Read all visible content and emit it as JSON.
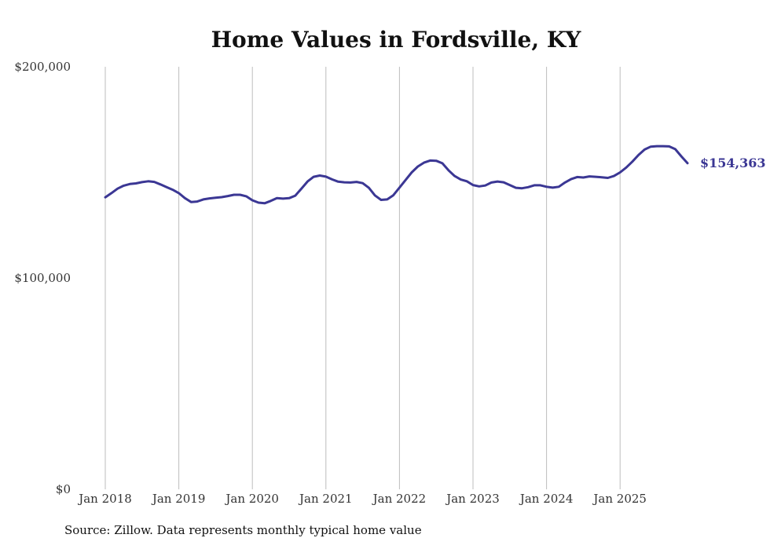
{
  "chart_data": {
    "type": "line",
    "title": "Home Values in Fordsville, KY",
    "xlabel": "",
    "ylabel": "",
    "ylim": [
      0,
      200000
    ],
    "y_ticks": [
      {
        "value": 0,
        "label": "$0"
      },
      {
        "value": 100000,
        "label": "$100,000"
      },
      {
        "value": 200000,
        "label": "$200,000"
      }
    ],
    "x_ticks": [
      {
        "index": 0,
        "label": "Jan 2018"
      },
      {
        "index": 12,
        "label": "Jan 2019"
      },
      {
        "index": 24,
        "label": "Jan 2020"
      },
      {
        "index": 36,
        "label": "Jan 2021"
      },
      {
        "index": 48,
        "label": "Jan 2022"
      },
      {
        "index": 60,
        "label": "Jan 2023"
      },
      {
        "index": 72,
        "label": "Jan 2024"
      },
      {
        "index": 84,
        "label": "Jan 2025"
      }
    ],
    "grid": "vertical at year ticks",
    "series": [
      {
        "name": "Typical home value",
        "color": "#3b3794",
        "start": "Jan 2018",
        "frequency": "monthly",
        "values": [
          138200,
          140200,
          142300,
          143700,
          144500,
          144800,
          145400,
          145800,
          145500,
          144300,
          143000,
          141800,
          140200,
          137800,
          136000,
          136200,
          137200,
          137700,
          138000,
          138300,
          138800,
          139400,
          139400,
          138700,
          136800,
          135700,
          135400,
          136500,
          137800,
          137600,
          137800,
          139000,
          142300,
          145700,
          147900,
          148500,
          148000,
          146700,
          145600,
          145300,
          145200,
          145500,
          144900,
          142700,
          139100,
          137000,
          137200,
          139200,
          142800,
          146400,
          150000,
          152800,
          154600,
          155600,
          155500,
          154300,
          151000,
          148300,
          146600,
          145800,
          144000,
          143400,
          143800,
          145200,
          145700,
          145300,
          144000,
          142700,
          142500,
          143000,
          143900,
          143900,
          143200,
          142800,
          143200,
          145200,
          146800,
          147800,
          147600,
          148100,
          147900,
          147700,
          147400,
          148300,
          150000,
          152300,
          155100,
          158200,
          160800,
          162200,
          162400,
          162400,
          162300,
          161000,
          157600,
          154363
        ]
      }
    ],
    "end_label": "$154,363"
  },
  "source": "Source: Zillow. Data represents monthly typical home value"
}
